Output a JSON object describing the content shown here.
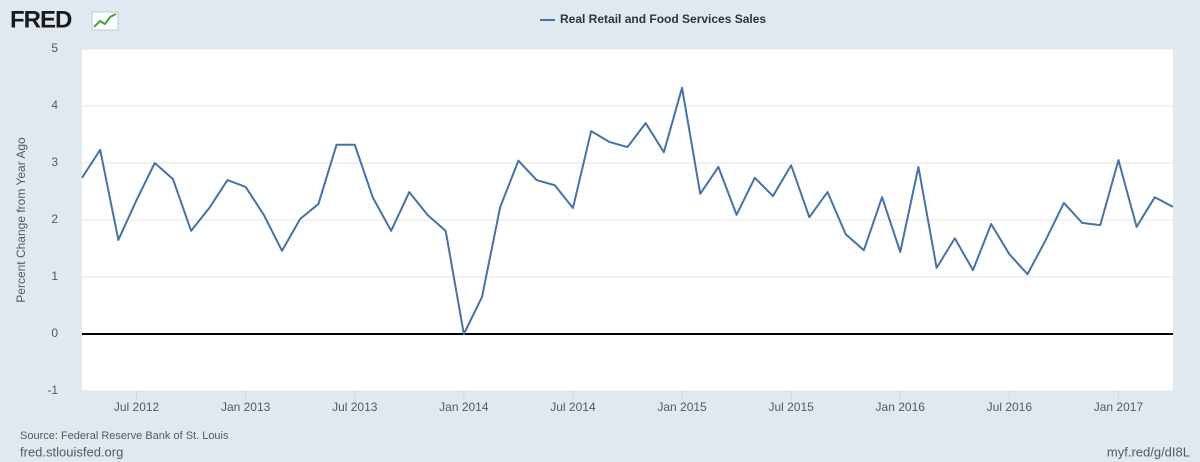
{
  "logo": "FRED",
  "chart_data": {
    "type": "line",
    "y_label": "Percent Change from Year Ago",
    "x": [
      "2012-04",
      "2012-05",
      "2012-06",
      "2012-07",
      "2012-08",
      "2012-09",
      "2012-10",
      "2012-11",
      "2012-12",
      "2013-01",
      "2013-02",
      "2013-03",
      "2013-04",
      "2013-05",
      "2013-06",
      "2013-07",
      "2013-08",
      "2013-09",
      "2013-10",
      "2013-11",
      "2013-12",
      "2014-01",
      "2014-02",
      "2014-03",
      "2014-04",
      "2014-05",
      "2014-06",
      "2014-07",
      "2014-08",
      "2014-09",
      "2014-10",
      "2014-11",
      "2014-12",
      "2015-01",
      "2015-02",
      "2015-03",
      "2015-04",
      "2015-05",
      "2015-06",
      "2015-07",
      "2015-08",
      "2015-09",
      "2015-10",
      "2015-11",
      "2015-12",
      "2016-01",
      "2016-02",
      "2016-03",
      "2016-04",
      "2016-05",
      "2016-06",
      "2016-07",
      "2016-08",
      "2016-09",
      "2016-10",
      "2016-11",
      "2016-12",
      "2017-01",
      "2017-02",
      "2017-03",
      "2017-04"
    ],
    "series": [
      {
        "name": "Real Retail and Food Services Sales",
        "color": "#4572a7",
        "values": [
          2.74,
          3.23,
          1.65,
          2.35,
          3.0,
          2.72,
          1.81,
          2.21,
          2.7,
          2.58,
          2.09,
          1.46,
          2.02,
          2.28,
          3.32,
          3.32,
          2.39,
          1.81,
          2.49,
          2.09,
          1.81,
          0.0,
          0.65,
          2.23,
          3.04,
          2.7,
          2.61,
          2.21,
          3.56,
          3.37,
          3.28,
          3.7,
          3.19,
          4.32,
          2.46,
          2.93,
          2.09,
          2.74,
          2.42,
          2.96,
          2.05,
          2.49,
          1.75,
          1.47,
          2.4,
          1.44,
          2.93,
          1.16,
          1.68,
          1.12,
          1.93,
          1.4,
          1.05,
          1.65,
          2.3,
          1.95,
          1.91,
          3.05,
          1.88,
          2.4,
          2.23
        ]
      }
    ],
    "xlim": [
      "2012-04",
      "2017-04"
    ],
    "xticks": [
      {
        "value": "2012-07",
        "label": "Jul 2012"
      },
      {
        "value": "2013-01",
        "label": "Jan 2013"
      },
      {
        "value": "2013-07",
        "label": "Jul 2013"
      },
      {
        "value": "2014-01",
        "label": "Jan 2014"
      },
      {
        "value": "2014-07",
        "label": "Jul 2014"
      },
      {
        "value": "2015-01",
        "label": "Jan 2015"
      },
      {
        "value": "2015-07",
        "label": "Jul 2015"
      },
      {
        "value": "2016-01",
        "label": "Jan 2016"
      },
      {
        "value": "2016-07",
        "label": "Jul 2016"
      },
      {
        "value": "2017-01",
        "label": "Jan 2017"
      }
    ],
    "ylim": [
      -1,
      5
    ],
    "yticks": [
      -1,
      0,
      1,
      2,
      3,
      4,
      5
    ],
    "grid": true
  },
  "footer": {
    "source": "Source: Federal Reserve Bank of St. Louis",
    "site": "fred.stlouisfed.org",
    "short_url": "myf.red/g/dI8L"
  }
}
